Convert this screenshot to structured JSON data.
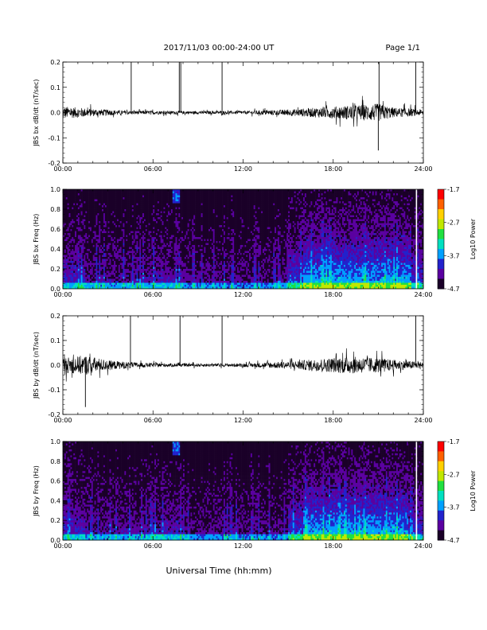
{
  "header": {
    "date_range": "2017/11/03  00:00-24:00 UT",
    "page": "Page 1/1"
  },
  "xlabel": "Universal Time (hh:mm)",
  "colors": {
    "trace": "#000000",
    "spectrogram_scale": [
      "#1a0028",
      "#5a00a0",
      "#2222cc",
      "#00a0ff",
      "#00e0c0",
      "#20e040",
      "#c0e800",
      "#ffd000",
      "#ff6000",
      "#ff0000"
    ]
  },
  "chart_data": [
    {
      "type": "line",
      "ylabel": "JBS bx dB/dt (nT/sec)",
      "xlim": [
        0,
        24
      ],
      "ylim": [
        -0.2,
        0.2
      ],
      "x_ticks": [
        "00:00",
        "06:00",
        "12:00",
        "18:00",
        "24:00"
      ],
      "y_ticks": [
        "0.2",
        "0.1",
        "0.0",
        "-0.1",
        "-0.2"
      ],
      "baseline_amplitude": [
        [
          0,
          0.025
        ],
        [
          2,
          0.015
        ],
        [
          4,
          0.008
        ],
        [
          8,
          0.006
        ],
        [
          12,
          0.006
        ],
        [
          15,
          0.012
        ],
        [
          17,
          0.02
        ],
        [
          19,
          0.028
        ],
        [
          21,
          0.035
        ],
        [
          22,
          0.02
        ],
        [
          24,
          0.012
        ]
      ],
      "spikes": [
        [
          4.55,
          0.22
        ],
        [
          7.75,
          0.22
        ],
        [
          7.85,
          0.22
        ],
        [
          10.6,
          0.22
        ],
        [
          21.05,
          0.2
        ],
        [
          21.0,
          -0.15
        ],
        [
          23.5,
          0.2
        ]
      ]
    },
    {
      "type": "heatmap",
      "ylabel": "JBS bx Freq (Hz)",
      "xlim": [
        0,
        24
      ],
      "ylim": [
        0,
        1
      ],
      "x_ticks": [
        "00:00",
        "06:00",
        "12:00",
        "18:00",
        "24:00"
      ],
      "y_ticks": [
        "1.0",
        "0.8",
        "0.6",
        "0.4",
        "0.2",
        "0.0"
      ],
      "colorbar": {
        "label": "Log10 Power",
        "min": -4.7,
        "max": -1.7,
        "ticks": [
          "-1.7",
          "-2.7",
          "-3.7",
          "-4.7"
        ]
      }
    },
    {
      "type": "line",
      "ylabel": "JBS by dB/dt (nT/sec)",
      "xlim": [
        0,
        24
      ],
      "ylim": [
        -0.2,
        0.2
      ],
      "x_ticks": [
        "00:00",
        "06:00",
        "12:00",
        "18:00",
        "24:00"
      ],
      "y_ticks": [
        "0.2",
        "0.1",
        "0.0",
        "-0.1",
        "-0.2"
      ],
      "baseline_amplitude": [
        [
          0,
          0.03
        ],
        [
          1.5,
          0.04
        ],
        [
          3,
          0.02
        ],
        [
          5,
          0.01
        ],
        [
          8,
          0.006
        ],
        [
          12,
          0.007
        ],
        [
          15,
          0.015
        ],
        [
          17,
          0.025
        ],
        [
          19,
          0.035
        ],
        [
          21,
          0.03
        ],
        [
          22,
          0.022
        ],
        [
          24,
          0.012
        ]
      ],
      "spikes": [
        [
          1.5,
          -0.17
        ],
        [
          4.5,
          0.2
        ],
        [
          7.8,
          0.2
        ],
        [
          10.6,
          0.2
        ],
        [
          23.5,
          0.2
        ]
      ]
    },
    {
      "type": "heatmap",
      "ylabel": "JBS by Freq (Hz)",
      "xlim": [
        0,
        24
      ],
      "ylim": [
        0,
        1
      ],
      "x_ticks": [
        "00:00",
        "06:00",
        "12:00",
        "18:00",
        "24:00"
      ],
      "y_ticks": [
        "1.0",
        "0.8",
        "0.6",
        "0.4",
        "0.2",
        "0.0"
      ],
      "colorbar": {
        "label": "Log10 Power",
        "min": -4.7,
        "max": -1.7,
        "ticks": [
          "-1.7",
          "-2.7",
          "-3.7",
          "-4.7"
        ]
      }
    }
  ]
}
